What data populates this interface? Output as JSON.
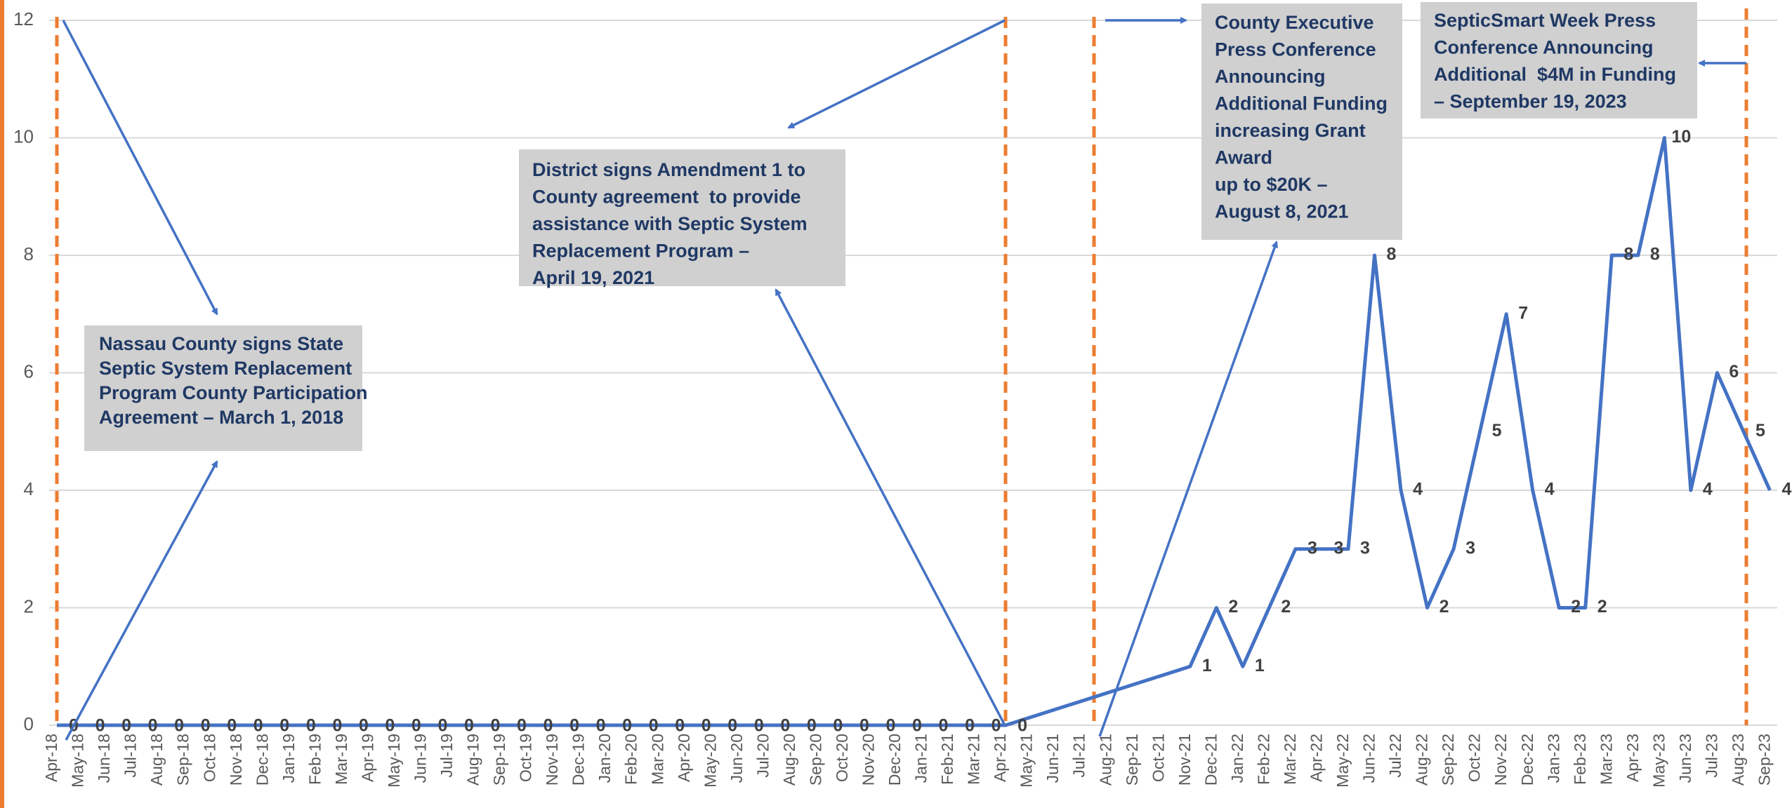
{
  "chart_data": {
    "type": "line",
    "categories": [
      "Apr-18",
      "May-18",
      "Jun-18",
      "Jul-18",
      "Aug-18",
      "Sep-18",
      "Oct-18",
      "Nov-18",
      "Dec-18",
      "Jan-19",
      "Feb-19",
      "Mar-19",
      "Apr-19",
      "May-19",
      "Jun-19",
      "Jul-19",
      "Aug-19",
      "Sep-19",
      "Oct-19",
      "Nov-19",
      "Dec-19",
      "Jan-20",
      "Feb-20",
      "Mar-20",
      "Apr-20",
      "May-20",
      "Jun-20",
      "Jul-20",
      "Aug-20",
      "Sep-20",
      "Oct-20",
      "Nov-20",
      "Dec-20",
      "Jan-21",
      "Feb-21",
      "Mar-21",
      "Apr-21",
      "May-21",
      "Jun-21",
      "Jul-21",
      "Aug-21",
      "Sep-21",
      "Oct-21",
      "Nov-21",
      "Dec-21",
      "Jan-22",
      "Feb-22",
      "Mar-22",
      "Apr-22",
      "May-22",
      "Jun-22",
      "Jul-22",
      "Aug-22",
      "Sep-22",
      "Oct-22",
      "Nov-22",
      "Dec-22",
      "Jan-23",
      "Feb-23",
      "Mar-23",
      "Apr-23",
      "May-23",
      "Jun-23",
      "Jul-23",
      "Aug-23",
      "Sep-23"
    ],
    "series": [
      {
        "color": "#4472c4",
        "values": [
          0,
          0,
          0,
          0,
          0,
          0,
          0,
          0,
          0,
          0,
          0,
          0,
          0,
          0,
          0,
          0,
          0,
          0,
          0,
          0,
          0,
          0,
          0,
          0,
          0,
          0,
          0,
          0,
          0,
          0,
          0,
          0,
          0,
          0,
          0,
          0,
          0,
          null,
          null,
          null,
          null,
          null,
          null,
          1,
          2,
          1,
          2,
          3,
          3,
          3,
          8,
          4,
          2,
          3,
          5,
          7,
          4,
          2,
          2,
          8,
          8,
          10,
          4,
          6,
          5,
          4
        ]
      }
    ],
    "span_gaps": true,
    "ylim": [
      0,
      12
    ],
    "yticks": [
      0,
      2,
      4,
      6,
      8,
      10,
      12
    ],
    "grid": true,
    "annotations": [
      {
        "lines": [
          "Nassau County signs State",
          "Septic System Replacement",
          "Program County Participation",
          "Agreement – March 1, 2018"
        ]
      },
      {
        "lines": [
          "District signs Amendment 1 to",
          "County agreement  to provide",
          "assistance with Septic System",
          "Replacement Program –",
          "April 19, 2021"
        ]
      },
      {
        "lines": [
          "County Executive",
          "Press Conference",
          "Announcing",
          "Additional Funding",
          "increasing Grant",
          "Award",
          "up to $20K –",
          "August 8, 2021"
        ]
      },
      {
        "lines": [
          "SepticSmart Week Press",
          "Conference Announcing",
          "Additional  $4M in Funding",
          "– September 19, 2023"
        ]
      }
    ]
  }
}
